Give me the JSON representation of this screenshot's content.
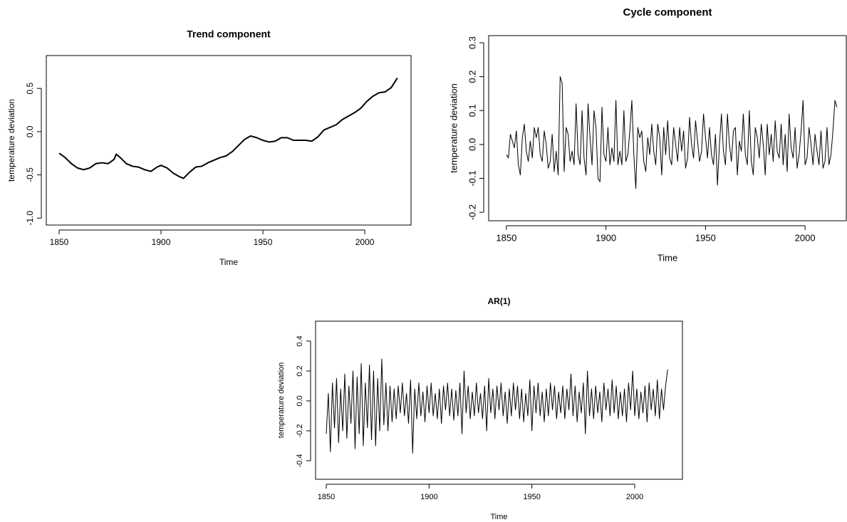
{
  "chart_data": [
    {
      "type": "line",
      "title": "Trend component",
      "xlabel": "Time",
      "ylabel": "temperature deviation",
      "color": "#000000",
      "x": [
        1850,
        1853,
        1856,
        1859,
        1862,
        1865,
        1868,
        1871,
        1874,
        1877,
        1878,
        1880,
        1883,
        1886,
        1889,
        1892,
        1895,
        1898,
        1900,
        1903,
        1906,
        1909,
        1911,
        1914,
        1917,
        1920,
        1923,
        1926,
        1929,
        1932,
        1935,
        1938,
        1941,
        1944,
        1947,
        1950,
        1953,
        1956,
        1959,
        1962,
        1965,
        1968,
        1971,
        1974,
        1977,
        1980,
        1983,
        1986,
        1989,
        1992,
        1995,
        1998,
        2001,
        2004,
        2007,
        2010,
        2013,
        2016
      ],
      "values": [
        -0.25,
        -0.3,
        -0.37,
        -0.42,
        -0.44,
        -0.42,
        -0.37,
        -0.36,
        -0.37,
        -0.32,
        -0.26,
        -0.3,
        -0.37,
        -0.4,
        -0.41,
        -0.44,
        -0.46,
        -0.41,
        -0.39,
        -0.42,
        -0.48,
        -0.52,
        -0.54,
        -0.47,
        -0.41,
        -0.4,
        -0.36,
        -0.33,
        -0.3,
        -0.28,
        -0.23,
        -0.16,
        -0.09,
        -0.05,
        -0.07,
        -0.1,
        -0.12,
        -0.11,
        -0.07,
        -0.07,
        -0.1,
        -0.1,
        -0.1,
        -0.11,
        -0.06,
        0.02,
        0.05,
        0.08,
        0.14,
        0.18,
        0.22,
        0.27,
        0.35,
        0.41,
        0.45,
        0.46,
        0.51,
        0.62
      ],
      "xlim": [
        1843.7,
        2022.7
      ],
      "ylim": [
        -1.08,
        0.88
      ],
      "xticks": [
        1850,
        1900,
        1950,
        2000
      ],
      "yticks": [
        {
          "value": -1,
          "label": "-1.0"
        },
        -0.5,
        {
          "value": 0,
          "label": "0.0"
        },
        0.5
      ]
    },
    {
      "type": "line",
      "title": "Cycle component",
      "xlabel": "Time",
      "ylabel": "temperature deviation",
      "color": "#000000",
      "x": [
        1850,
        1851,
        1852,
        1853,
        1854,
        1855,
        1856,
        1857,
        1858,
        1859,
        1860,
        1861,
        1862,
        1863,
        1864,
        1865,
        1866,
        1867,
        1868,
        1869,
        1870,
        1871,
        1872,
        1873,
        1874,
        1875,
        1876,
        1877,
        1878,
        1879,
        1880,
        1881,
        1882,
        1883,
        1884,
        1885,
        1886,
        1887,
        1888,
        1889,
        1890,
        1891,
        1892,
        1893,
        1894,
        1895,
        1896,
        1897,
        1898,
        1899,
        1900,
        1901,
        1902,
        1903,
        1904,
        1905,
        1906,
        1907,
        1908,
        1909,
        1910,
        1911,
        1912,
        1913,
        1914,
        1915,
        1916,
        1917,
        1918,
        1919,
        1920,
        1921,
        1922,
        1923,
        1924,
        1925,
        1926,
        1927,
        1928,
        1929,
        1930,
        1931,
        1932,
        1933,
        1934,
        1935,
        1936,
        1937,
        1938,
        1939,
        1940,
        1941,
        1942,
        1943,
        1944,
        1945,
        1946,
        1947,
        1948,
        1949,
        1950,
        1951,
        1952,
        1953,
        1954,
        1955,
        1956,
        1957,
        1958,
        1959,
        1960,
        1961,
        1962,
        1963,
        1964,
        1965,
        1966,
        1967,
        1968,
        1969,
        1970,
        1971,
        1972,
        1973,
        1974,
        1975,
        1976,
        1977,
        1978,
        1979,
        1980,
        1981,
        1982,
        1983,
        1984,
        1985,
        1986,
        1987,
        1988,
        1989,
        1990,
        1991,
        1992,
        1993,
        1994,
        1995,
        1996,
        1997,
        1998,
        1999,
        2000,
        2001,
        2002,
        2003,
        2004,
        2005,
        2006,
        2007,
        2008,
        2009,
        2010,
        2011,
        2012,
        2013,
        2014,
        2015,
        2016
      ],
      "values": [
        -0.03,
        -0.04,
        0.03,
        0.01,
        -0.01,
        0.04,
        -0.06,
        -0.09,
        0.02,
        0.06,
        -0.02,
        -0.05,
        0.01,
        -0.04,
        0.05,
        0.02,
        0.05,
        -0.03,
        -0.05,
        0.04,
        0.0,
        -0.07,
        -0.05,
        0.03,
        -0.08,
        -0.02,
        -0.09,
        0.2,
        0.18,
        -0.08,
        0.05,
        0.03,
        -0.05,
        -0.02,
        -0.06,
        0.12,
        -0.03,
        -0.06,
        0.1,
        -0.04,
        -0.09,
        0.12,
        0.02,
        -0.06,
        0.1,
        0.05,
        -0.1,
        -0.11,
        0.11,
        -0.03,
        -0.05,
        0.05,
        -0.06,
        -0.01,
        -0.05,
        0.13,
        -0.06,
        -0.02,
        -0.06,
        0.1,
        -0.05,
        -0.03,
        0.04,
        0.13,
        -0.03,
        -0.13,
        0.05,
        0.02,
        0.04,
        -0.05,
        -0.08,
        0.02,
        -0.03,
        0.06,
        -0.02,
        -0.06,
        0.06,
        0.02,
        -0.09,
        0.05,
        -0.03,
        0.07,
        -0.04,
        -0.06,
        0.05,
        0.0,
        -0.05,
        0.05,
        -0.02,
        0.04,
        -0.07,
        -0.04,
        0.08,
        0.0,
        -0.04,
        0.07,
        0.01,
        -0.05,
        -0.02,
        0.09,
        0.02,
        -0.04,
        0.05,
        -0.03,
        -0.06,
        0.03,
        -0.12,
        0.0,
        0.09,
        -0.02,
        -0.06,
        0.09,
        0.0,
        -0.05,
        0.04,
        0.05,
        -0.09,
        0.01,
        -0.02,
        0.09,
        -0.03,
        -0.06,
        0.1,
        -0.05,
        -0.09,
        0.05,
        0.02,
        -0.04,
        0.06,
        0.0,
        -0.09,
        0.06,
        -0.03,
        0.03,
        -0.05,
        0.07,
        -0.02,
        -0.04,
        0.06,
        -0.06,
        0.03,
        -0.08,
        0.09,
        -0.01,
        -0.04,
        0.05,
        -0.07,
        -0.03,
        0.04,
        0.13,
        -0.06,
        -0.04,
        0.05,
        0.0,
        -0.06,
        0.03,
        -0.02,
        -0.06,
        0.04,
        -0.07,
        -0.05,
        0.05,
        -0.06,
        -0.03,
        0.04,
        0.13,
        0.11
      ],
      "xlim": [
        1841.1,
        2020.7
      ],
      "ylim": [
        -0.225,
        0.321
      ],
      "xticks": [
        1850,
        1900,
        1950,
        2000
      ],
      "yticks": [
        -0.2,
        -0.1,
        {
          "value": 0,
          "label": "0.0"
        },
        0.1,
        0.2,
        0.3
      ]
    },
    {
      "type": "line",
      "title": "AR(1)",
      "xlabel": "Time",
      "ylabel": "temperature deviation",
      "color": "#000000",
      "x": [
        1850,
        1851,
        1852,
        1853,
        1854,
        1855,
        1856,
        1857,
        1858,
        1859,
        1860,
        1861,
        1862,
        1863,
        1864,
        1865,
        1866,
        1867,
        1868,
        1869,
        1870,
        1871,
        1872,
        1873,
        1874,
        1875,
        1876,
        1877,
        1878,
        1879,
        1880,
        1881,
        1882,
        1883,
        1884,
        1885,
        1886,
        1887,
        1888,
        1889,
        1890,
        1891,
        1892,
        1893,
        1894,
        1895,
        1896,
        1897,
        1898,
        1899,
        1900,
        1901,
        1902,
        1903,
        1904,
        1905,
        1906,
        1907,
        1908,
        1909,
        1910,
        1911,
        1912,
        1913,
        1914,
        1915,
        1916,
        1917,
        1918,
        1919,
        1920,
        1921,
        1922,
        1923,
        1924,
        1925,
        1926,
        1927,
        1928,
        1929,
        1930,
        1931,
        1932,
        1933,
        1934,
        1935,
        1936,
        1937,
        1938,
        1939,
        1940,
        1941,
        1942,
        1943,
        1944,
        1945,
        1946,
        1947,
        1948,
        1949,
        1950,
        1951,
        1952,
        1953,
        1954,
        1955,
        1956,
        1957,
        1958,
        1959,
        1960,
        1961,
        1962,
        1963,
        1964,
        1965,
        1966,
        1967,
        1968,
        1969,
        1970,
        1971,
        1972,
        1973,
        1974,
        1975,
        1976,
        1977,
        1978,
        1979,
        1980,
        1981,
        1982,
        1983,
        1984,
        1985,
        1986,
        1987,
        1988,
        1989,
        1990,
        1991,
        1992,
        1993,
        1994,
        1995,
        1996,
        1997,
        1998,
        1999,
        2000,
        2001,
        2002,
        2003,
        2004,
        2005,
        2006,
        2007,
        2008,
        2009,
        2010,
        2011,
        2012,
        2013,
        2014,
        2015,
        2016
      ],
      "values": [
        -0.22,
        0.05,
        -0.34,
        0.12,
        -0.18,
        0.15,
        -0.28,
        0.08,
        -0.2,
        0.18,
        -0.25,
        0.1,
        -0.15,
        0.2,
        -0.32,
        0.16,
        -0.22,
        0.25,
        -0.3,
        0.12,
        -0.18,
        0.24,
        -0.26,
        0.2,
        -0.3,
        0.15,
        -0.2,
        0.28,
        -0.16,
        0.12,
        -0.2,
        0.1,
        -0.14,
        0.08,
        -0.12,
        0.1,
        -0.08,
        0.12,
        -0.1,
        0.05,
        -0.15,
        0.14,
        -0.35,
        0.08,
        -0.12,
        0.12,
        -0.1,
        0.06,
        -0.14,
        0.1,
        -0.08,
        0.12,
        -0.1,
        0.05,
        -0.12,
        0.08,
        -0.15,
        0.1,
        -0.06,
        0.12,
        -0.1,
        0.08,
        -0.13,
        0.07,
        -0.1,
        0.12,
        -0.22,
        0.2,
        -0.08,
        0.1,
        -0.12,
        0.06,
        -0.1,
        0.12,
        -0.08,
        0.05,
        -0.12,
        0.1,
        -0.2,
        0.15,
        -0.08,
        0.08,
        -0.12,
        0.1,
        -0.06,
        0.12,
        -0.1,
        0.06,
        -0.15,
        0.08,
        -0.1,
        0.12,
        -0.06,
        0.1,
        -0.12,
        0.08,
        -0.14,
        0.05,
        -0.1,
        0.14,
        -0.2,
        0.1,
        -0.08,
        0.12,
        -0.1,
        0.06,
        -0.14,
        0.08,
        -0.1,
        0.12,
        -0.06,
        0.1,
        -0.12,
        0.06,
        -0.08,
        0.1,
        -0.12,
        0.08,
        -0.06,
        0.18,
        -0.1,
        0.1,
        -0.14,
        0.06,
        -0.08,
        0.12,
        -0.22,
        0.2,
        -0.1,
        0.08,
        -0.12,
        0.1,
        -0.08,
        0.06,
        -0.14,
        0.12,
        -0.06,
        0.08,
        -0.1,
        0.14,
        -0.08,
        0.1,
        -0.12,
        0.06,
        -0.1,
        0.08,
        -0.14,
        0.12,
        -0.06,
        0.2,
        -0.1,
        0.08,
        -0.12,
        0.06,
        -0.08,
        0.1,
        -0.14,
        0.12,
        -0.06,
        0.08,
        -0.1,
        0.14,
        -0.12,
        0.08,
        -0.06,
        0.1,
        0.21
      ],
      "xlim": [
        1844.8,
        2023.2
      ],
      "ylim": [
        -0.524,
        0.533
      ],
      "xticks": [
        1850,
        1900,
        1950,
        2000
      ],
      "yticks": [
        -0.4,
        -0.2,
        {
          "value": 0,
          "label": "0.0"
        },
        0.2,
        0.4
      ]
    }
  ]
}
